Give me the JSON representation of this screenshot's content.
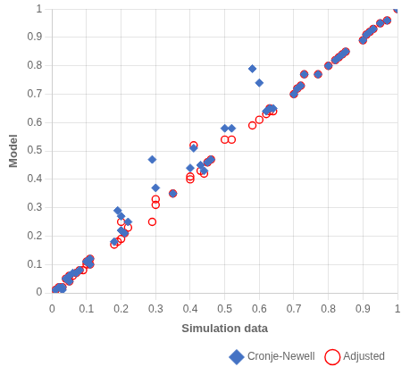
{
  "chart_data": {
    "type": "scatter",
    "xlabel": "Simulation data",
    "ylabel": "Model",
    "xlim": [
      0,
      1
    ],
    "ylim": [
      0,
      1
    ],
    "xticks": [
      0,
      0.1,
      0.2,
      0.3,
      0.4,
      0.5,
      0.6,
      0.7,
      0.8,
      0.9,
      1
    ],
    "yticks": [
      0,
      0.1,
      0.2,
      0.3,
      0.4,
      0.5,
      0.6,
      0.7,
      0.8,
      0.9,
      1
    ],
    "grid": true,
    "legend": "lower right",
    "series": [
      {
        "name": "Cronje-Newell",
        "color": "#4472C4",
        "marker": "diamond",
        "x": [
          0.01,
          0.02,
          0.03,
          0.03,
          0.04,
          0.05,
          0.05,
          0.06,
          0.07,
          0.08,
          0.1,
          0.1,
          0.11,
          0.11,
          0.18,
          0.19,
          0.2,
          0.2,
          0.21,
          0.22,
          0.29,
          0.3,
          0.35,
          0.4,
          0.41,
          0.43,
          0.44,
          0.45,
          0.46,
          0.5,
          0.52,
          0.58,
          0.6,
          0.62,
          0.63,
          0.63,
          0.64,
          0.7,
          0.71,
          0.72,
          0.73,
          0.77,
          0.8,
          0.82,
          0.83,
          0.84,
          0.85,
          0.9,
          0.91,
          0.92,
          0.93,
          0.95,
          0.97,
          1.0
        ],
        "values": [
          0.01,
          0.02,
          0.01,
          0.02,
          0.05,
          0.04,
          0.06,
          0.07,
          0.07,
          0.08,
          0.11,
          0.11,
          0.1,
          0.12,
          0.18,
          0.29,
          0.22,
          0.27,
          0.21,
          0.25,
          0.47,
          0.37,
          0.35,
          0.44,
          0.51,
          0.45,
          0.43,
          0.46,
          0.47,
          0.58,
          0.58,
          0.79,
          0.74,
          0.64,
          0.65,
          0.65,
          0.65,
          0.7,
          0.72,
          0.73,
          0.77,
          0.77,
          0.8,
          0.82,
          0.83,
          0.84,
          0.85,
          0.89,
          0.91,
          0.92,
          0.93,
          0.95,
          0.96,
          1.0
        ]
      },
      {
        "name": "Adjusted",
        "color": "#FF0000",
        "marker": "circle",
        "x": [
          0.01,
          0.02,
          0.02,
          0.03,
          0.04,
          0.05,
          0.05,
          0.06,
          0.07,
          0.08,
          0.09,
          0.1,
          0.1,
          0.11,
          0.11,
          0.18,
          0.19,
          0.2,
          0.2,
          0.21,
          0.22,
          0.29,
          0.3,
          0.3,
          0.35,
          0.4,
          0.4,
          0.41,
          0.43,
          0.44,
          0.45,
          0.46,
          0.5,
          0.52,
          0.58,
          0.6,
          0.62,
          0.63,
          0.63,
          0.64,
          0.7,
          0.71,
          0.72,
          0.73,
          0.77,
          0.8,
          0.82,
          0.83,
          0.84,
          0.85,
          0.9,
          0.91,
          0.92,
          0.93,
          0.95,
          0.97,
          1.0
        ],
        "values": [
          0.01,
          0.01,
          0.02,
          0.02,
          0.05,
          0.04,
          0.06,
          0.06,
          0.07,
          0.08,
          0.08,
          0.1,
          0.11,
          0.1,
          0.12,
          0.17,
          0.18,
          0.19,
          0.25,
          0.21,
          0.23,
          0.25,
          0.31,
          0.33,
          0.35,
          0.4,
          0.41,
          0.52,
          0.43,
          0.42,
          0.46,
          0.47,
          0.54,
          0.54,
          0.59,
          0.61,
          0.63,
          0.64,
          0.65,
          0.64,
          0.7,
          0.72,
          0.73,
          0.77,
          0.77,
          0.8,
          0.82,
          0.83,
          0.84,
          0.85,
          0.89,
          0.91,
          0.92,
          0.93,
          0.95,
          0.96,
          1.0
        ]
      }
    ]
  }
}
